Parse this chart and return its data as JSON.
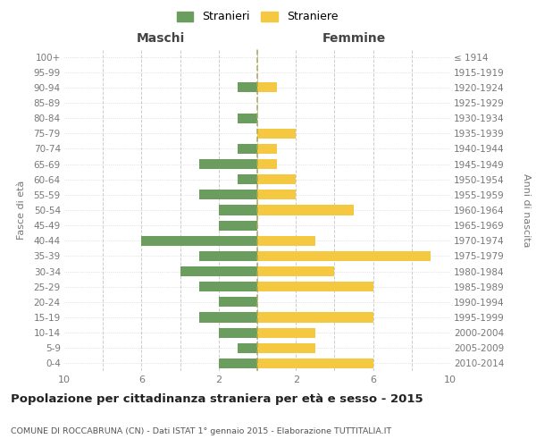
{
  "age_groups": [
    "0-4",
    "5-9",
    "10-14",
    "15-19",
    "20-24",
    "25-29",
    "30-34",
    "35-39",
    "40-44",
    "45-49",
    "50-54",
    "55-59",
    "60-64",
    "65-69",
    "70-74",
    "75-79",
    "80-84",
    "85-89",
    "90-94",
    "95-99",
    "100+"
  ],
  "birth_years": [
    "2010-2014",
    "2005-2009",
    "2000-2004",
    "1995-1999",
    "1990-1994",
    "1985-1989",
    "1980-1984",
    "1975-1979",
    "1970-1974",
    "1965-1969",
    "1960-1964",
    "1955-1959",
    "1950-1954",
    "1945-1949",
    "1940-1944",
    "1935-1939",
    "1930-1934",
    "1925-1929",
    "1920-1924",
    "1915-1919",
    "≤ 1914"
  ],
  "maschi": [
    2,
    1,
    2,
    3,
    2,
    3,
    4,
    3,
    6,
    2,
    2,
    3,
    1,
    3,
    1,
    0,
    1,
    0,
    1,
    0,
    0
  ],
  "femmine": [
    6,
    3,
    3,
    6,
    0,
    6,
    4,
    9,
    3,
    0,
    5,
    2,
    2,
    1,
    1,
    2,
    0,
    0,
    1,
    0,
    0
  ],
  "color_maschi": "#6b9e5e",
  "color_femmine": "#f5c842",
  "title": "Popolazione per cittadinanza straniera per età e sesso - 2015",
  "subtitle": "COMUNE DI ROCCABRUNA (CN) - Dati ISTAT 1° gennaio 2015 - Elaborazione TUTTITALIA.IT",
  "label_left": "Maschi",
  "label_right": "Femmine",
  "ylabel_left": "Fasce di età",
  "ylabel_right": "Anni di nascita",
  "legend_maschi": "Stranieri",
  "legend_femmine": "Straniere",
  "xlim": 10,
  "xtick_positions": [
    -10,
    -6,
    -2,
    2,
    6,
    10
  ],
  "xtick_labels": [
    "10",
    "6",
    "2",
    "2",
    "6",
    "10"
  ],
  "grid_lines_x": [
    -8,
    -6,
    -4,
    -2,
    0,
    2,
    4,
    6,
    8
  ],
  "background_color": "#ffffff",
  "grid_color": "#cccccc"
}
